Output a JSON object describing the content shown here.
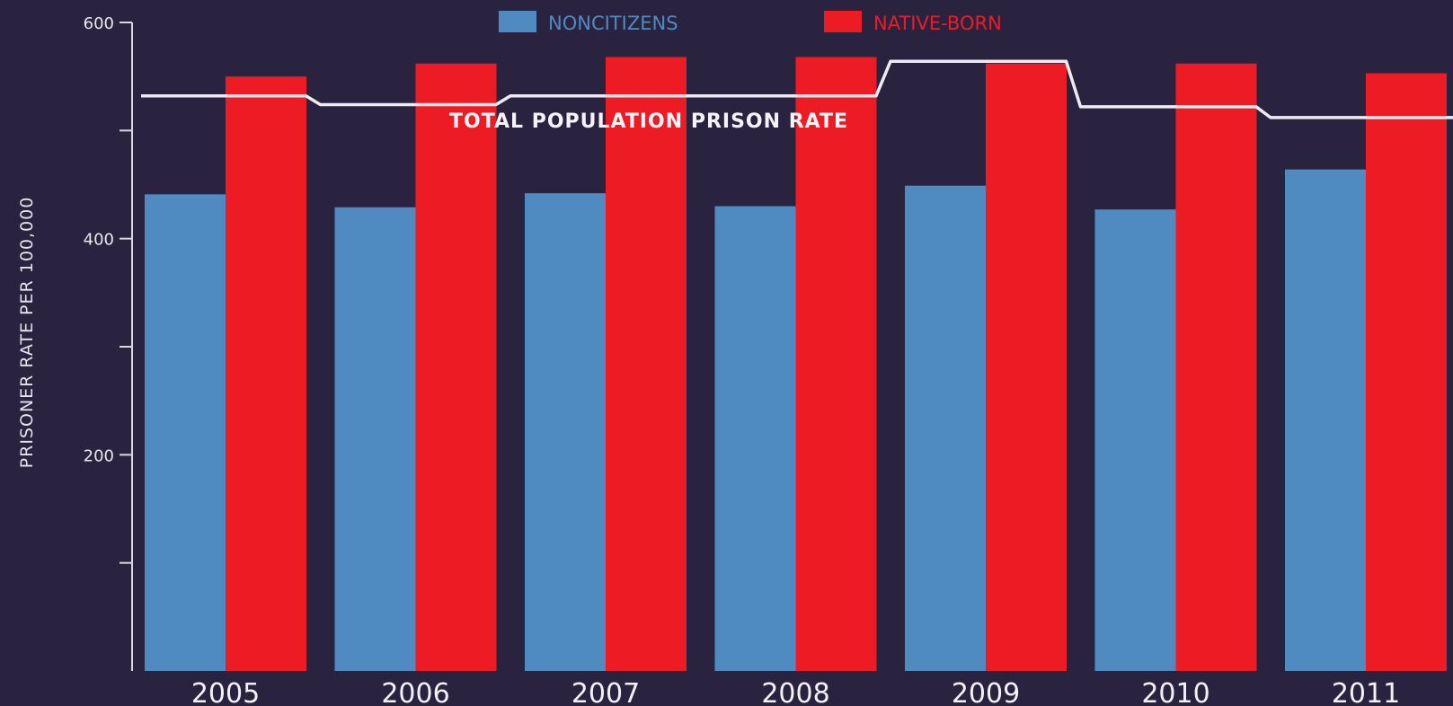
{
  "chart_data": {
    "type": "bar",
    "categories": [
      "2005",
      "2006",
      "2007",
      "2008",
      "2009",
      "2010",
      "2011"
    ],
    "series": [
      {
        "name": "NONCITIZENS",
        "color": "#4f8bc0",
        "values": [
          441,
          429,
          442,
          430,
          449,
          427,
          464
        ]
      },
      {
        "name": "NATIVE-BORN",
        "color": "#ed1c24",
        "values": [
          550,
          562,
          568,
          568,
          562,
          562,
          553
        ]
      }
    ],
    "line": {
      "label": "TOTAL POPULATION PRISON RATE",
      "color": "#ececf2",
      "values": [
        532,
        524,
        532,
        532,
        564,
        522,
        512
      ]
    },
    "ylabel": "PRISONER RATE PER 100,000",
    "ylim": [
      0,
      600
    ],
    "yticks": [
      200,
      400,
      600
    ],
    "grid": false,
    "legend_position": "top"
  }
}
